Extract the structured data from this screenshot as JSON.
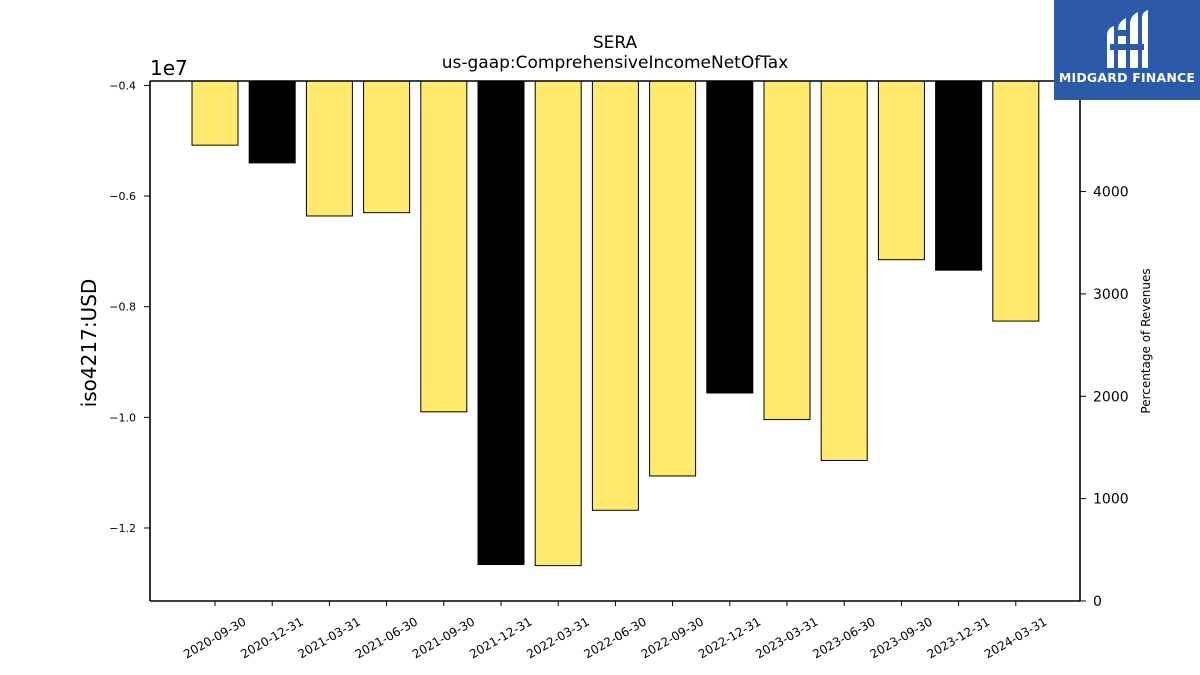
{
  "chart_data": {
    "type": "bar",
    "title": "SERA",
    "subtitle": "us-gaap:ComprehensiveIncomeNetOfTax",
    "ylabel": "iso4217:USD",
    "y_offset_label": "1e7",
    "y2label": "Percentage of Revenues",
    "categories": [
      "2020-09-30",
      "2020-12-31",
      "2021-03-31",
      "2021-06-30",
      "2021-09-30",
      "2021-12-31",
      "2022-03-31",
      "2022-06-30",
      "2022-09-30",
      "2022-12-31",
      "2023-03-31",
      "2023-06-30",
      "2023-09-30",
      "2023-12-31",
      "2024-03-31"
    ],
    "values": [
      -5080000,
      -5400000,
      -6360000,
      -6300000,
      -9900000,
      -12660000,
      -12680000,
      -11680000,
      -11060000,
      -9560000,
      -10040000,
      -10780000,
      -7150000,
      -7340000,
      -8260000
    ],
    "bar_colors": [
      "#fdea6f",
      "#000000",
      "#fdea6f",
      "#fdea6f",
      "#fdea6f",
      "#000000",
      "#fdea6f",
      "#fdea6f",
      "#fdea6f",
      "#000000",
      "#fdea6f",
      "#fdea6f",
      "#fdea6f",
      "#000000",
      "#fdea6f"
    ],
    "ylim": [
      -13320000,
      -3920000
    ],
    "yticks": [
      -4000000,
      -6000000,
      -8000000,
      -10000000,
      -12000000
    ],
    "ytick_labels": [
      "−0.4",
      "−0.6",
      "−0.8",
      "−1.0",
      "−1.2"
    ],
    "y2lim": [
      0,
      5080
    ],
    "y2ticks": [
      0,
      1000,
      2000,
      3000,
      4000
    ],
    "y2tick_labels": [
      "0",
      "1000",
      "2000",
      "3000",
      "4000"
    ],
    "grid": false,
    "legend": "none"
  },
  "logo": {
    "text": "MIDGARD FINANCE"
  }
}
